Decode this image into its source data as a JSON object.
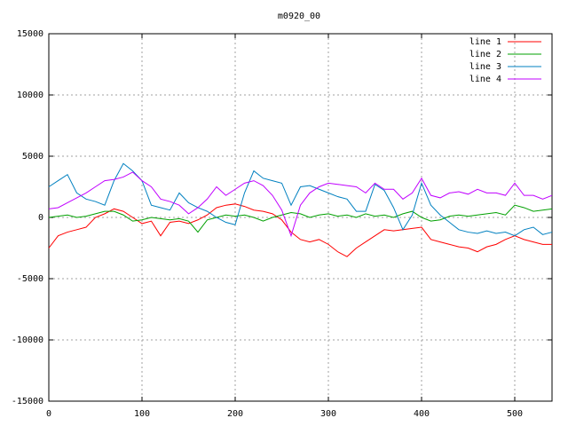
{
  "chart_data": {
    "type": "line",
    "title": "m0920_00",
    "x": [
      0,
      10,
      20,
      30,
      40,
      50,
      60,
      70,
      80,
      90,
      100,
      110,
      120,
      130,
      140,
      150,
      160,
      170,
      180,
      190,
      200,
      210,
      220,
      230,
      240,
      250,
      260,
      270,
      280,
      290,
      300,
      310,
      320,
      330,
      340,
      350,
      360,
      370,
      380,
      390,
      400,
      410,
      420,
      430,
      440,
      450,
      460,
      470,
      480,
      490,
      500,
      510,
      520,
      530,
      540
    ],
    "series": [
      {
        "name": "line 1",
        "color": "#ff0000",
        "values": [
          -2500,
          -1500,
          -1200,
          -1000,
          -800,
          0,
          300,
          700,
          500,
          0,
          -500,
          -300,
          -1500,
          -400,
          -300,
          -500,
          -200,
          200,
          800,
          1000,
          1100,
          900,
          600,
          500,
          300,
          -200,
          -1200,
          -1800,
          -2000,
          -1800,
          -2200,
          -2800,
          -3200,
          -2500,
          -2000,
          -1500,
          -1000,
          -1100,
          -1000,
          -900,
          -800,
          -1800,
          -2000,
          -2200,
          -2400,
          -2500,
          -2800,
          -2400,
          -2200,
          -1800,
          -1500,
          -1800,
          -2000,
          -2200,
          -2200
        ]
      },
      {
        "name": "line 2",
        "color": "#00a000",
        "values": [
          0,
          100,
          200,
          0,
          100,
          300,
          500,
          500,
          200,
          -300,
          -200,
          0,
          -100,
          -200,
          -100,
          -300,
          -1200,
          -200,
          0,
          200,
          100,
          200,
          0,
          -300,
          0,
          200,
          400,
          300,
          0,
          200,
          300,
          100,
          200,
          0,
          300,
          100,
          200,
          0,
          300,
          500,
          0,
          -300,
          -200,
          100,
          200,
          100,
          200,
          300,
          400,
          200,
          1000,
          800,
          500,
          600,
          700
        ]
      },
      {
        "name": "line 3",
        "color": "#0080c0",
        "values": [
          2500,
          3000,
          3500,
          2000,
          1500,
          1300,
          1000,
          3000,
          4400,
          3800,
          3000,
          1000,
          800,
          600,
          2000,
          1200,
          800,
          500,
          0,
          -400,
          -600,
          2000,
          3800,
          3200,
          3000,
          2800,
          1000,
          2500,
          2600,
          2300,
          2000,
          1700,
          1500,
          500,
          500,
          2700,
          2200,
          800,
          -1000,
          200,
          2800,
          1000,
          200,
          -400,
          -1000,
          -1200,
          -1300,
          -1100,
          -1300,
          -1200,
          -1500,
          -1000,
          -800,
          -1400,
          -1200
        ]
      },
      {
        "name": "line 4",
        "color": "#c000ff",
        "values": [
          700,
          800,
          1200,
          1600,
          2000,
          2500,
          3000,
          3100,
          3300,
          3700,
          3000,
          2500,
          1500,
          1300,
          1000,
          300,
          800,
          1500,
          2500,
          1800,
          2300,
          2800,
          3000,
          2600,
          1800,
          600,
          -1500,
          1000,
          2000,
          2500,
          2800,
          2700,
          2600,
          2500,
          2000,
          2800,
          2300,
          2300,
          1500,
          2000,
          3200,
          1800,
          1600,
          2000,
          2100,
          1900,
          2300,
          2000,
          2000,
          1800,
          2800,
          1800,
          1800,
          1500,
          1800
        ]
      }
    ],
    "xlim": [
      0,
      540
    ],
    "ylim": [
      -15000,
      15000
    ],
    "xticks": [
      0,
      100,
      200,
      300,
      400,
      500
    ],
    "yticks": [
      -15000,
      -10000,
      -5000,
      0,
      5000,
      10000,
      15000
    ],
    "grid": true,
    "legend": "top-right"
  }
}
